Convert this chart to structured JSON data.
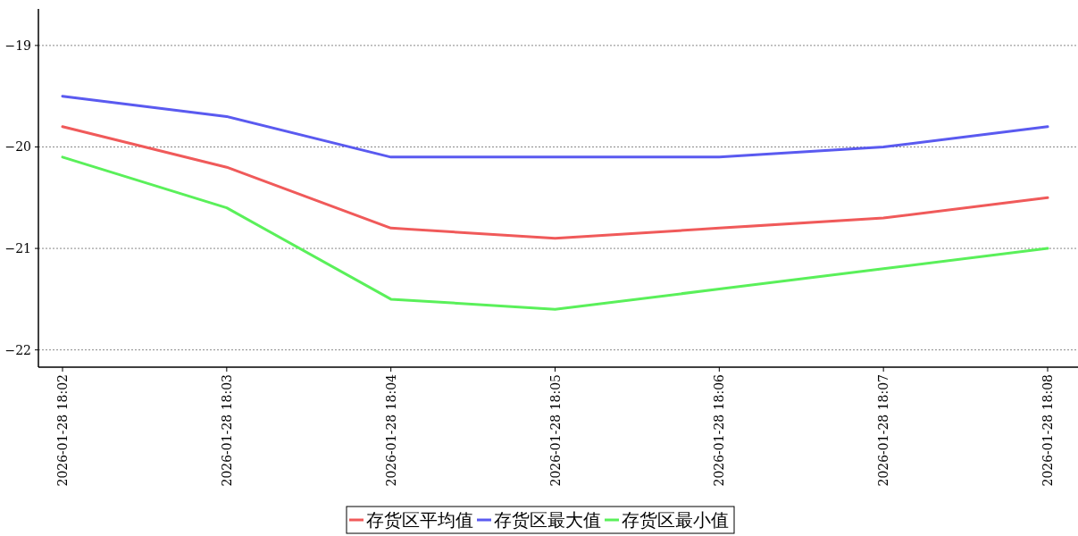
{
  "chart_data": {
    "type": "line",
    "categories": [
      "2026-01-28 18:02",
      "2026-01-28 18:03",
      "2026-01-28 18:04",
      "2026-01-28 18:05",
      "2026-01-28 18:06",
      "2026-01-28 18:07",
      "2026-01-28 18:08"
    ],
    "series": [
      {
        "name": "存货区平均值",
        "color": "#f05a5a",
        "values": [
          -19.8,
          -20.2,
          -20.8,
          -20.9,
          -20.8,
          -20.7,
          -20.5
        ]
      },
      {
        "name": "存货区最大值",
        "color": "#5a5af0",
        "values": [
          -19.5,
          -19.7,
          -20.1,
          -20.1,
          -20.1,
          -20.0,
          -19.8
        ]
      },
      {
        "name": "存货区最小值",
        "color": "#5af05a",
        "values": [
          -20.1,
          -20.6,
          -21.5,
          -21.6,
          -21.4,
          -21.2,
          -21.0
        ]
      }
    ],
    "ylim": [
      -22.17,
      -18.64
    ],
    "yticks": [
      {
        "value": -22,
        "label": "−22"
      },
      {
        "value": -21,
        "label": "−21"
      },
      {
        "value": -20,
        "label": "−20"
      },
      {
        "value": -19,
        "label": "−19"
      }
    ],
    "grid": "y",
    "legend": "bottom",
    "marker": "none",
    "line_style": "solid"
  }
}
